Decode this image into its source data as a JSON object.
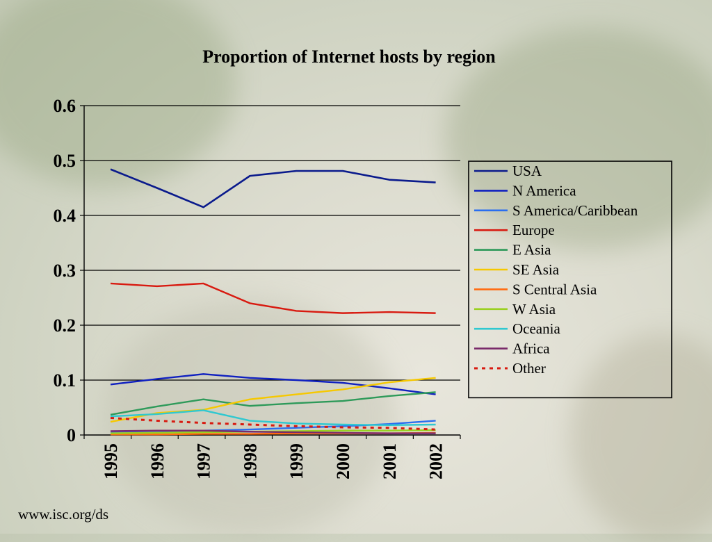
{
  "colors": {
    "USA": "#0a1a8c",
    "N America": "#1020c0",
    "S America/Caribbean": "#2a6ef0",
    "Europe": "#d81a10",
    "E Asia": "#2e9a5a",
    "SE Asia": "#f6c800",
    "S Central Asia": "#ff6a10",
    "W Asia": "#9ad020",
    "Oceania": "#30c8d0",
    "Africa": "#7a2a6a",
    "Other": "#d81a10"
  },
  "source_text": "www.isc.org/ds",
  "chart_data": {
    "type": "line",
    "title": "Proportion of Internet hosts by region",
    "xlabel": "",
    "ylabel": "",
    "x": [
      "1995",
      "1996",
      "1997",
      "1998",
      "1999",
      "2000",
      "2001",
      "2002"
    ],
    "ylim": [
      0,
      0.6
    ],
    "yticks": [
      "0",
      "0.1",
      "0.2",
      "0.3",
      "0.4",
      "0.5",
      "0.6"
    ],
    "grid": true,
    "legend": "right",
    "series": [
      {
        "name": "USA",
        "values": [
          0.484,
          0.45,
          0.415,
          0.472,
          0.481,
          0.481,
          0.465,
          0.46
        ]
      },
      {
        "name": "N America",
        "values": [
          0.092,
          0.102,
          0.111,
          0.104,
          0.1,
          0.095,
          0.085,
          0.074
        ]
      },
      {
        "name": "S America/Caribbean",
        "values": [
          0.006,
          0.007,
          0.008,
          0.01,
          0.013,
          0.016,
          0.02,
          0.026
        ]
      },
      {
        "name": "Europe",
        "values": [
          0.276,
          0.271,
          0.276,
          0.24,
          0.226,
          0.222,
          0.224,
          0.222
        ]
      },
      {
        "name": "E Asia",
        "values": [
          0.037,
          0.052,
          0.065,
          0.053,
          0.058,
          0.062,
          0.071,
          0.078
        ]
      },
      {
        "name": "SE Asia",
        "values": [
          0.024,
          0.04,
          0.046,
          0.065,
          0.074,
          0.083,
          0.096,
          0.104
        ]
      },
      {
        "name": "S Central Asia",
        "values": [
          0.001,
          0.001,
          0.002,
          0.002,
          0.003,
          0.003,
          0.003,
          0.004
        ]
      },
      {
        "name": "W Asia",
        "values": [
          0.003,
          0.004,
          0.005,
          0.006,
          0.007,
          0.008,
          0.008,
          0.009
        ]
      },
      {
        "name": "Oceania",
        "values": [
          0.034,
          0.038,
          0.045,
          0.026,
          0.021,
          0.019,
          0.018,
          0.019
        ]
      },
      {
        "name": "Africa",
        "values": [
          0.007,
          0.008,
          0.008,
          0.006,
          0.005,
          0.004,
          0.003,
          0.003
        ]
      },
      {
        "name": "Other",
        "values": [
          0.031,
          0.026,
          0.022,
          0.019,
          0.016,
          0.014,
          0.013,
          0.01
        ]
      }
    ]
  }
}
